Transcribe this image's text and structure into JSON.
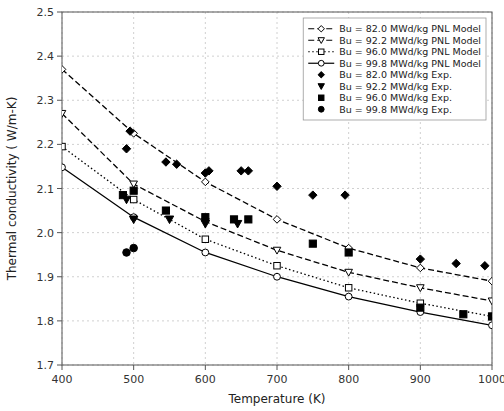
{
  "chart_data": {
    "type": "line",
    "xlabel": "Temperature (K)",
    "ylabel": "Thermal conductivity ( W/m-K)",
    "xlim": [
      400,
      1000
    ],
    "ylim": [
      1.7,
      2.5
    ],
    "xticks": [
      400,
      500,
      600,
      700,
      800,
      900,
      1000
    ],
    "yticks": [
      1.7,
      1.8,
      1.9,
      {
        "value": 2.0,
        "label": "2.0"
      },
      2.1,
      2.2,
      2.3,
      2.4,
      2.5
    ],
    "grid": true,
    "legend": "upper right",
    "series": [
      {
        "name": "Bu = 82.0 MWd/kg PNL Model",
        "type": "line",
        "color": "#000000",
        "marker": "diamond",
        "line_style": "dashed",
        "x": [
          400,
          500,
          600,
          700,
          800,
          900,
          1000
        ],
        "values": [
          2.37,
          2.225,
          2.115,
          2.03,
          1.965,
          1.92,
          1.89
        ]
      },
      {
        "name": "Bu = 92.2 MWd/kg PNL Model",
        "type": "line",
        "color": "#000000",
        "marker": "triangle-down",
        "line_style": "dashed",
        "x": [
          400,
          500,
          600,
          700,
          800,
          900,
          1000
        ],
        "values": [
          2.27,
          2.11,
          2.025,
          1.96,
          1.91,
          1.875,
          1.845
        ]
      },
      {
        "name": "Bu = 96.0 MWd/kg PNL Model",
        "type": "line",
        "color": "#000000",
        "marker": "square",
        "line_style": "dotted",
        "x": [
          400,
          500,
          600,
          700,
          800,
          900,
          1000
        ],
        "values": [
          2.195,
          2.075,
          1.985,
          1.925,
          1.875,
          1.84,
          1.81
        ]
      },
      {
        "name": "Bu = 99.8 MWd/kg PNL Model",
        "type": "line",
        "color": "#000000",
        "marker": "circle",
        "line_style": "solid",
        "x": [
          400,
          500,
          600,
          700,
          800,
          900,
          1000
        ],
        "values": [
          2.148,
          2.035,
          1.955,
          1.9,
          1.855,
          1.82,
          1.79
        ]
      },
      {
        "name": "Bu = 82.0 MWd/kg Exp.",
        "type": "scatter",
        "color": "#000000",
        "marker": "diamond",
        "x": [
          490,
          495,
          545,
          560,
          600,
          605,
          650,
          660,
          700,
          750,
          795,
          900,
          950,
          990
        ],
        "values": [
          2.19,
          2.23,
          2.16,
          2.155,
          2.135,
          2.14,
          2.14,
          2.14,
          2.105,
          2.085,
          2.085,
          1.94,
          1.93,
          1.925
        ]
      },
      {
        "name": "Bu = 92.2 MWd/kg Exp.",
        "type": "scatter",
        "color": "#000000",
        "marker": "triangle-down",
        "x": [
          490,
          500,
          550,
          600,
          645
        ],
        "values": [
          2.075,
          2.03,
          2.03,
          2.02,
          2.02
        ]
      },
      {
        "name": "Bu = 96.0 MWd/kg Exp.",
        "type": "scatter",
        "color": "#000000",
        "marker": "square",
        "x": [
          485,
          500,
          545,
          600,
          640,
          660,
          750,
          800,
          900,
          960,
          1000
        ],
        "values": [
          2.085,
          2.095,
          2.05,
          2.035,
          2.03,
          2.03,
          1.975,
          1.955,
          1.83,
          1.815,
          1.81
        ]
      },
      {
        "name": "Bu = 99.8 MWd/kg Exp.",
        "type": "scatter",
        "color": "#000000",
        "marker": "circle",
        "x": [
          490,
          500
        ],
        "values": [
          1.955,
          1.965
        ]
      }
    ]
  }
}
